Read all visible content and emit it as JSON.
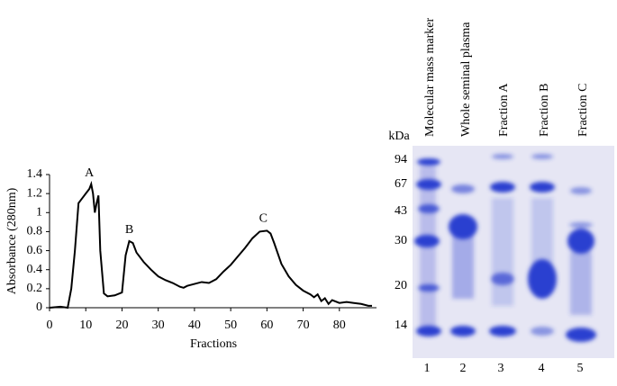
{
  "chart_data": {
    "type": "line",
    "x_label": "Fractions",
    "y_label": "Absorbance (280nm)",
    "x": [
      0,
      3,
      5,
      6,
      7,
      8,
      9,
      10,
      11,
      11.5,
      12,
      12.5,
      13,
      13.5,
      14,
      15,
      16,
      18,
      20,
      21,
      22,
      23,
      24,
      26,
      28,
      30,
      32,
      34,
      36,
      37,
      38,
      40,
      42,
      44,
      46,
      48,
      50,
      52,
      54,
      56,
      58,
      60,
      61,
      62,
      64,
      66,
      68,
      70,
      72,
      73,
      74,
      75,
      76,
      77,
      78,
      80,
      82,
      84,
      86,
      88,
      89
    ],
    "values": [
      0,
      0.01,
      0,
      0.2,
      0.6,
      1.1,
      1.15,
      1.2,
      1.25,
      1.3,
      1.2,
      1.0,
      1.1,
      1.18,
      0.6,
      0.15,
      0.12,
      0.13,
      0.16,
      0.55,
      0.7,
      0.68,
      0.58,
      0.48,
      0.4,
      0.33,
      0.29,
      0.26,
      0.22,
      0.21,
      0.23,
      0.25,
      0.27,
      0.26,
      0.3,
      0.38,
      0.45,
      0.54,
      0.63,
      0.73,
      0.8,
      0.81,
      0.78,
      0.68,
      0.46,
      0.33,
      0.24,
      0.18,
      0.14,
      0.11,
      0.14,
      0.07,
      0.1,
      0.04,
      0.08,
      0.05,
      0.06,
      0.05,
      0.04,
      0.02,
      0.02
    ],
    "color": "#000000",
    "xlim": [
      0,
      89
    ],
    "xticks": [
      0,
      10,
      20,
      30,
      40,
      50,
      60,
      70,
      80
    ],
    "ylim": [
      0,
      1.4
    ],
    "yticks": [
      0,
      0.2,
      0.4,
      0.6,
      0.8,
      1,
      1.2,
      1.4
    ],
    "annotations": [
      {
        "text": "A",
        "x": 11,
        "y": 1.3
      },
      {
        "text": "B",
        "x": 22,
        "y": 0.7
      },
      {
        "text": "C",
        "x": 59,
        "y": 0.82
      }
    ]
  },
  "gel": {
    "unit": "kDa",
    "markers": [
      "94",
      "67",
      "43",
      "30",
      "20",
      "14"
    ],
    "lanes": [
      "Molecular mass marker",
      "Whole seminal plasma",
      "Fraction A",
      "Fraction B",
      "Fraction C"
    ],
    "lane_numbers": [
      "1",
      "2",
      "3",
      "4",
      "5"
    ]
  }
}
